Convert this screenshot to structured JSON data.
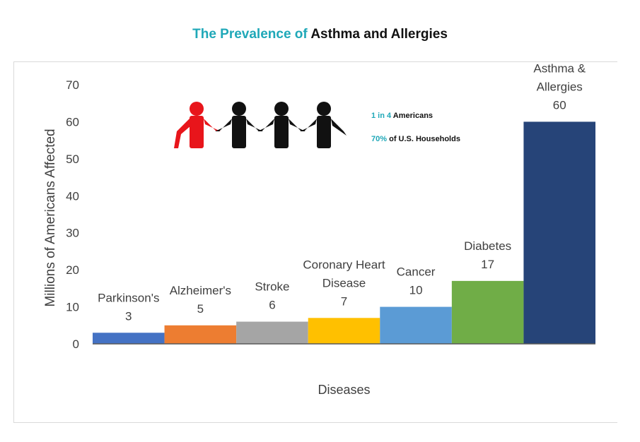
{
  "title": {
    "accent": "The Prevalence of",
    "main": "Asthma and Allergies"
  },
  "callouts": {
    "line1_accent": "1 in 4",
    "line1_rest": "Americans",
    "line2_accent": "70%",
    "line2_rest": "of U.S. Households"
  },
  "colors": {
    "accent": "#1fa8b8",
    "figure_highlight": "#e8151b",
    "figure_default": "#111111"
  },
  "chart_data": {
    "type": "bar",
    "title": "The Prevalence of Asthma and Allergies",
    "xlabel": "Diseases",
    "ylabel": "Millions of Americans Affected",
    "ylim": [
      0,
      70
    ],
    "yticks": [
      0,
      10,
      20,
      30,
      40,
      50,
      60,
      70
    ],
    "grid": false,
    "categories": [
      [
        "Parkinson's"
      ],
      [
        "Alzheimer's"
      ],
      [
        "Stroke"
      ],
      [
        "Coronary Heart",
        "Disease"
      ],
      [
        "Cancer"
      ],
      [
        "Diabetes"
      ],
      [
        "Asthma &",
        "Allergies"
      ]
    ],
    "values": [
      3,
      5,
      6,
      7,
      10,
      17,
      60
    ],
    "colors": [
      "#4472c4",
      "#ed7d31",
      "#a5a5a5",
      "#ffc000",
      "#5b9bd5",
      "#70ad47",
      "#264478"
    ]
  }
}
